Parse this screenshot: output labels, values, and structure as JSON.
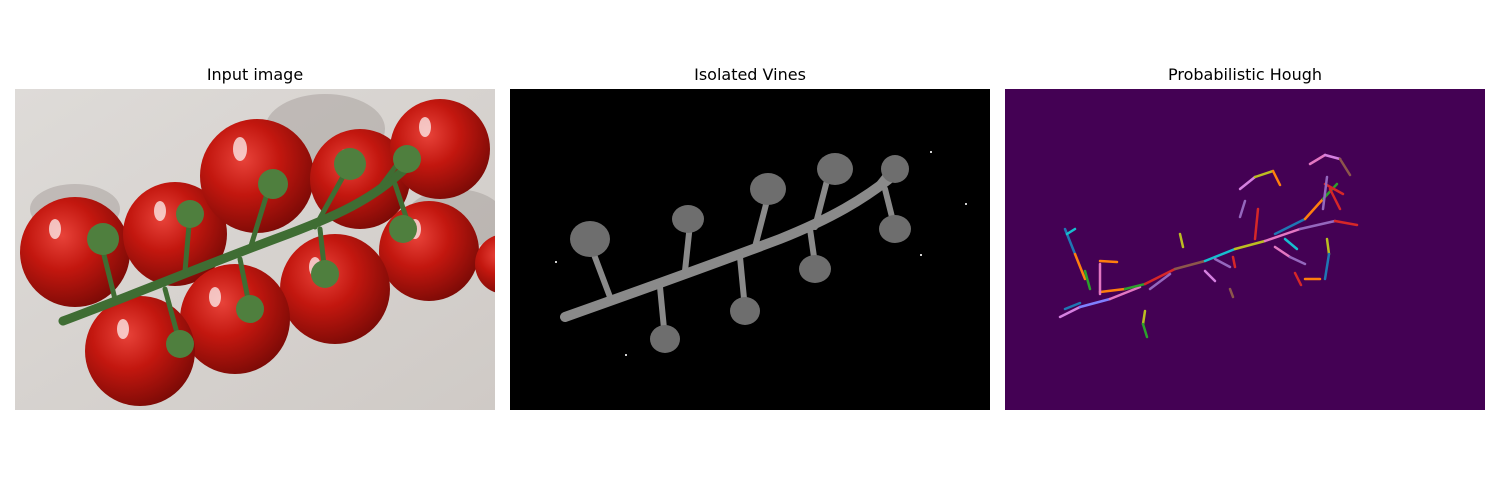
{
  "panels": [
    {
      "title": "Input image",
      "content": "photo of tomatoes on the vine"
    },
    {
      "title": "Isolated Vines",
      "content": "grayscale vine mask on black"
    },
    {
      "title": "Probabilistic Hough",
      "content": "colored line segments on purple"
    }
  ],
  "colors": {
    "background": "#ffffff",
    "hough_bg": "#440154",
    "vine_bg": "#000000"
  }
}
